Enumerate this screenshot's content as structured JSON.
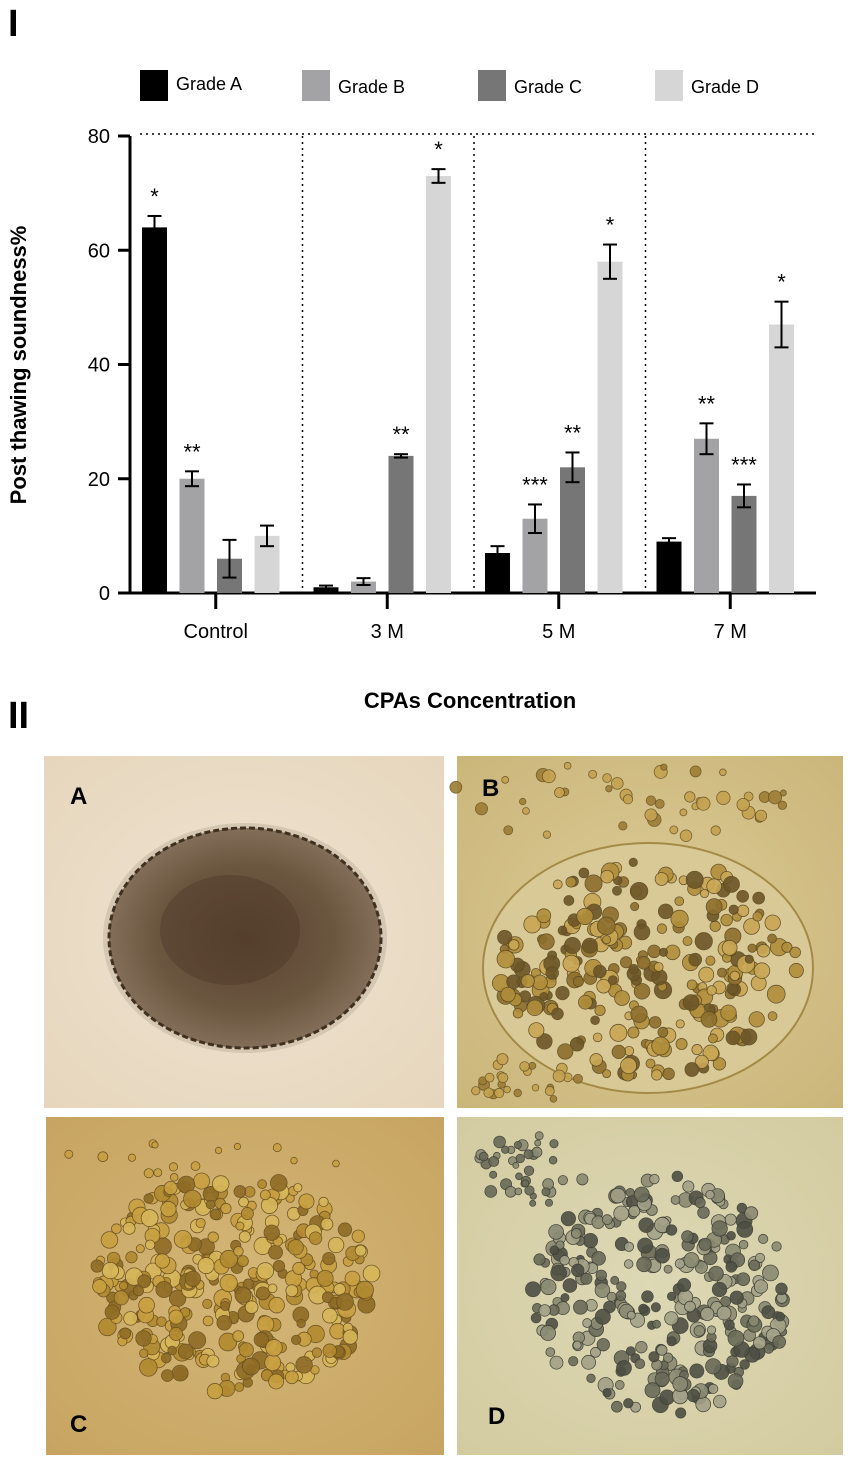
{
  "panels": {
    "chart_label": "I",
    "images_label": "II"
  },
  "chart_data": {
    "type": "bar",
    "title": "",
    "xlabel": "CPAs Concentration",
    "ylabel": "Post thawing soundness%",
    "ylim": [
      0,
      80
    ],
    "yticks": [
      0,
      20,
      40,
      60,
      80
    ],
    "grid": false,
    "legend_position": "top",
    "categories": [
      "Control",
      "3 M",
      "5 M",
      "7 M"
    ],
    "series": [
      {
        "name": "Grade A",
        "color": "#000000",
        "values": [
          64,
          1,
          7,
          9
        ],
        "errors": [
          2,
          0.3,
          1.2,
          0.6
        ],
        "significance": [
          "*",
          "",
          "",
          ""
        ]
      },
      {
        "name": "Grade B",
        "color": "#a3a3a5",
        "values": [
          20,
          2,
          13,
          27
        ],
        "errors": [
          1.3,
          0.6,
          2.5,
          2.7
        ],
        "significance": [
          "**",
          "",
          "***",
          "**"
        ]
      },
      {
        "name": "Grade C",
        "color": "#767676",
        "values": [
          6,
          24,
          22,
          17
        ],
        "errors": [
          3.3,
          0.3,
          2.6,
          2
        ],
        "significance": [
          "",
          "**",
          "**",
          "***"
        ]
      },
      {
        "name": "Grade D",
        "color": "#d6d6d6",
        "values": [
          10,
          73,
          58,
          47
        ],
        "errors": [
          1.8,
          1.2,
          3,
          4
        ],
        "significance": [
          "",
          "*",
          "*",
          "*"
        ]
      }
    ],
    "reference_line": {
      "y": 80,
      "style": "dotted"
    },
    "group_separators": "dotted"
  },
  "photos": [
    {
      "label": "A",
      "icon": "microscopy-image-compact-dark-embryo",
      "label_position": "top-left"
    },
    {
      "label": "B",
      "icon": "microscopy-image-loosened-embryo",
      "label_position": "top-left"
    },
    {
      "label": "C",
      "icon": "microscopy-image-fragmented-embryo",
      "label_position": "bottom-left"
    },
    {
      "label": "D",
      "icon": "microscopy-image-scattered-cells",
      "label_position": "bottom-left"
    }
  ]
}
